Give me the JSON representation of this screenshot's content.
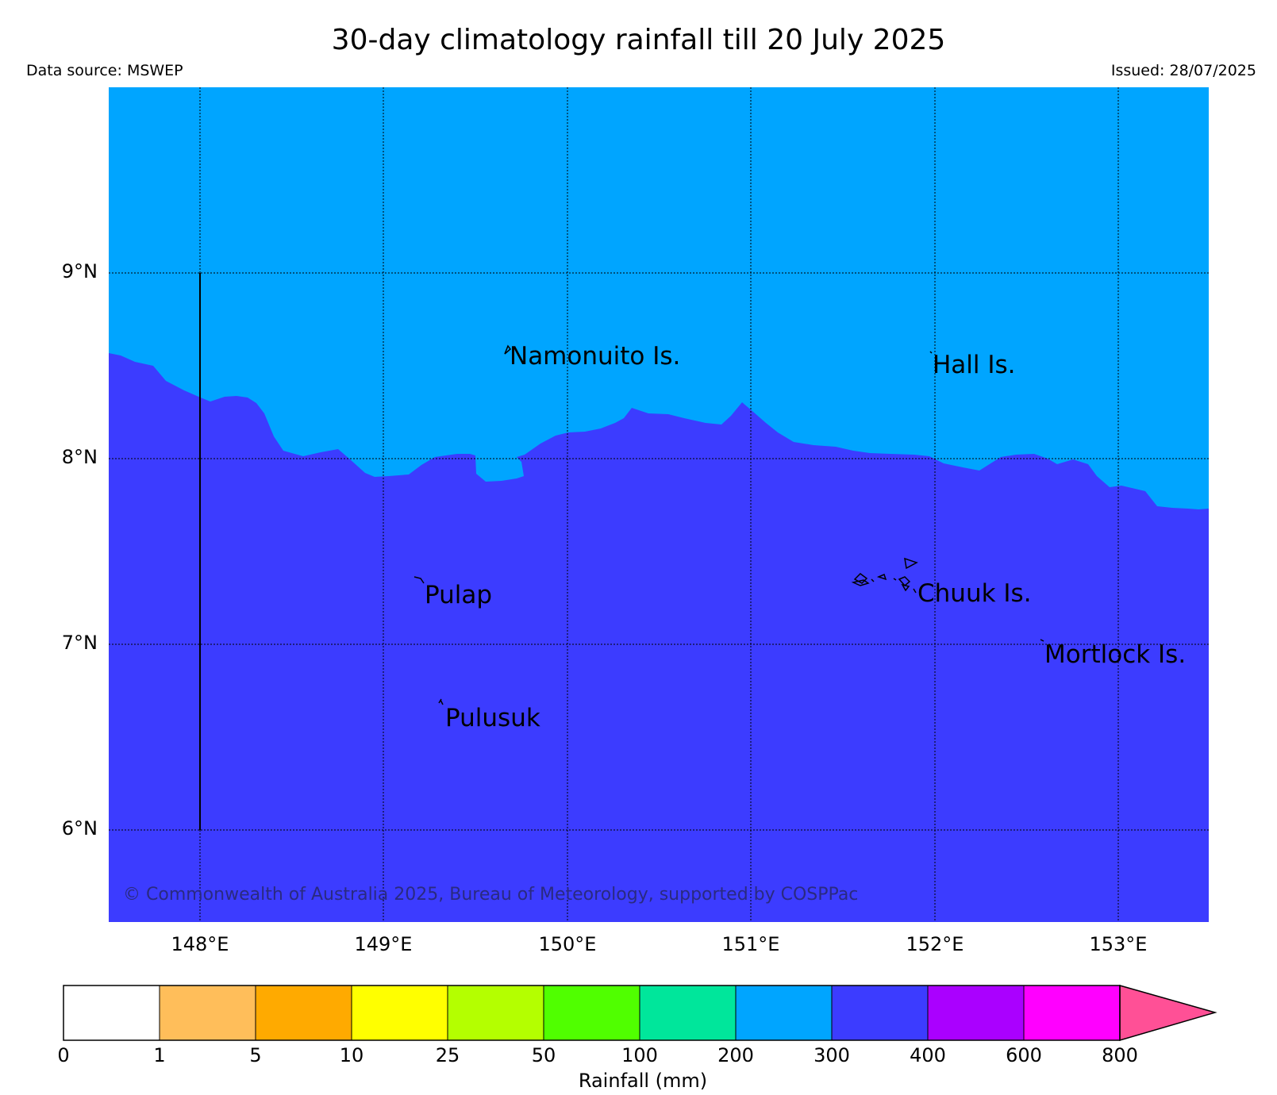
{
  "title": "30-day climatology rainfall till 20 July 2025",
  "data_source": "Data source: MSWEP",
  "issued": "Issued: 28/07/2025",
  "copyright": "© Commonwealth of Australia 2025, Bureau of Meteorology, supported by COSPPac",
  "latitude_labels": [
    "9°N",
    "8°N",
    "7°N",
    "6°N"
  ],
  "longitude_labels": [
    "148°E",
    "149°E",
    "150°E",
    "151°E",
    "152°E",
    "153°E"
  ],
  "places": [
    "Namonuito Is.",
    "Hall Is.",
    "Pulap",
    "Chuuk Is.",
    "Mortlock Is.",
    "Pulusuk"
  ],
  "colorbar": {
    "title": "Rainfall (mm)",
    "ticks": [
      "0",
      "1",
      "5",
      "10",
      "25",
      "50",
      "100",
      "200",
      "300",
      "400",
      "600",
      "800"
    ],
    "colors": [
      "#ffffff",
      "#ffbe5a",
      "#ffaa00",
      "#ffff00",
      "#b4ff00",
      "#50ff00",
      "#00e69b",
      "#00a5ff",
      "#3c3cff",
      "#aa00ff",
      "#ff00ff",
      "#ff5096"
    ]
  },
  "map_colors": {
    "band_200_300": "#00a5ff",
    "band_300_400": "#3c3cff"
  }
}
